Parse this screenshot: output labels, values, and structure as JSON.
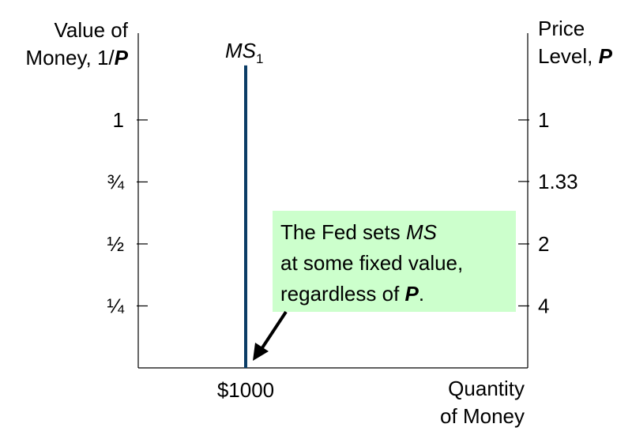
{
  "chart_data": {
    "type": "line",
    "ylabel": {
      "lines": [
        "Value of",
        "Money, 1/"
      ],
      "symbol": "P"
    },
    "y2label": {
      "lines": [
        "Price",
        "Level, "
      ],
      "symbol": "P"
    },
    "xlabel": [
      "Quantity",
      "of Money"
    ],
    "xlim": [
      0,
      3625
    ],
    "xticks": [
      {
        "value": 1000,
        "label": "$1000"
      }
    ],
    "ylim": [
      0,
      1.35
    ],
    "yticks": [
      {
        "value": 1,
        "label": "1"
      },
      {
        "value": 0.75,
        "label": "¾"
      },
      {
        "value": 0.5,
        "label": "½"
      },
      {
        "value": 0.25,
        "label": "¼"
      }
    ],
    "y2scale": "reciprocal",
    "y2ticks": [
      1,
      1.33,
      2,
      4
    ],
    "series": [
      {
        "name": "MS",
        "name_subscript": "1",
        "color": "#0b3d66",
        "x": [
          1000,
          1000
        ],
        "values": [
          0,
          1.22
        ]
      }
    ],
    "annotation": {
      "color": "#ccffcc",
      "parts": [
        "The Fed sets ",
        "MS",
        "at some fixed value,",
        "regardless of ",
        "P",
        "."
      ]
    }
  }
}
